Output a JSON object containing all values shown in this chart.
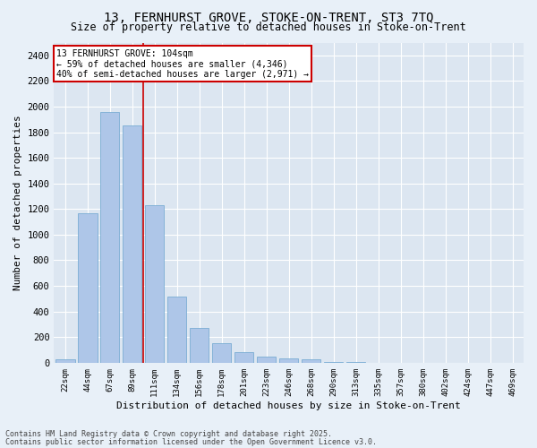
{
  "title1": "13, FERNHURST GROVE, STOKE-ON-TRENT, ST3 7TQ",
  "title2": "Size of property relative to detached houses in Stoke-on-Trent",
  "xlabel": "Distribution of detached houses by size in Stoke-on-Trent",
  "ylabel": "Number of detached properties",
  "bar_labels": [
    "22sqm",
    "44sqm",
    "67sqm",
    "89sqm",
    "111sqm",
    "134sqm",
    "156sqm",
    "178sqm",
    "201sqm",
    "223sqm",
    "246sqm",
    "268sqm",
    "290sqm",
    "313sqm",
    "335sqm",
    "357sqm",
    "380sqm",
    "402sqm",
    "424sqm",
    "447sqm",
    "469sqm"
  ],
  "bar_values": [
    25,
    1165,
    1960,
    1850,
    1230,
    520,
    275,
    155,
    80,
    48,
    35,
    28,
    8,
    4,
    2,
    2,
    2,
    2,
    1,
    1,
    1
  ],
  "bar_color": "#aec6e8",
  "bar_edge_color": "#7aadd4",
  "red_line_x": 3.5,
  "annotation_title": "13 FERNHURST GROVE: 104sqm",
  "annotation_line1": "← 59% of detached houses are smaller (4,346)",
  "annotation_line2": "40% of semi-detached houses are larger (2,971) →",
  "annotation_box_color": "#ffffff",
  "annotation_box_edge": "#cc0000",
  "red_line_color": "#cc0000",
  "ylim": [
    0,
    2500
  ],
  "yticks": [
    0,
    200,
    400,
    600,
    800,
    1000,
    1200,
    1400,
    1600,
    1800,
    2000,
    2200,
    2400
  ],
  "bg_color": "#dce6f1",
  "grid_color": "#ffffff",
  "fig_bg_color": "#e8f0f8",
  "footer1": "Contains HM Land Registry data © Crown copyright and database right 2025.",
  "footer2": "Contains public sector information licensed under the Open Government Licence v3.0."
}
